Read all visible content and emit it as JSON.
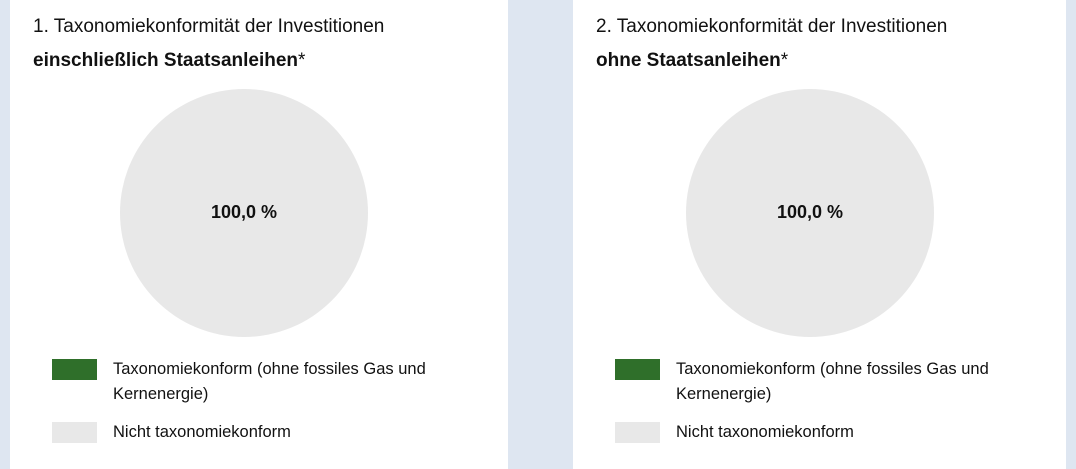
{
  "chart_data": [
    {
      "type": "pie",
      "title": "1. Taxonomiekonformität der Investitionen",
      "title_emphasis": "einschließlich Staatsanleihen",
      "title_note": "*",
      "categories": [
        "Taxonomiekonform (ohne fossiles Gas und Kernenergie)",
        "Nicht taxonomiekonform"
      ],
      "values": [
        0,
        100
      ],
      "value_labels": [
        null,
        "100,0 %"
      ],
      "colors": [
        "#2f6f2a",
        "#e8e8e8"
      ]
    },
    {
      "type": "pie",
      "title": "2. Taxonomiekonformität der Investitionen",
      "title_emphasis": "ohne Staatsanleihen",
      "title_note": "*",
      "categories": [
        "Taxonomiekonform (ohne fossiles Gas und Kernenergie)",
        "Nicht taxonomiekonform"
      ],
      "values": [
        0,
        100
      ],
      "value_labels": [
        null,
        "100,0 %"
      ],
      "colors": [
        "#2f6f2a",
        "#e8e8e8"
      ]
    }
  ]
}
